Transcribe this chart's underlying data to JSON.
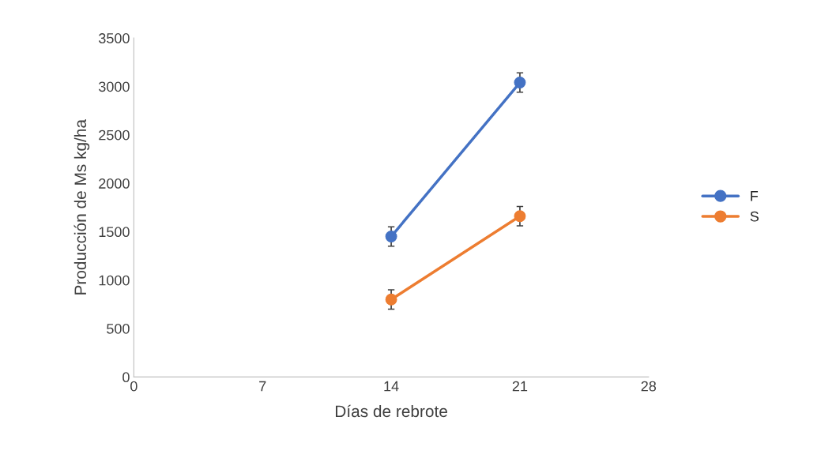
{
  "chart_data": {
    "type": "line",
    "xlabel": "Días de rebrote",
    "ylabel": "Producción de Ms kg/ha",
    "x": [
      14,
      21
    ],
    "series": [
      {
        "name": "F",
        "color": "#4472c4",
        "values": [
          1450,
          3040
        ],
        "errors": [
          100,
          100
        ]
      },
      {
        "name": "S",
        "color": "#ed7d31",
        "values": [
          800,
          1660
        ],
        "errors": [
          100,
          100
        ]
      }
    ],
    "xlim": [
      0,
      28
    ],
    "xticks": [
      0,
      7,
      14,
      21,
      28
    ],
    "ylim": [
      0,
      3500
    ],
    "yticks": [
      0,
      500,
      1000,
      1500,
      2000,
      2500,
      3000,
      3500
    ],
    "grid": false,
    "legend": "right",
    "marker": "circle",
    "line_style": "solid"
  }
}
